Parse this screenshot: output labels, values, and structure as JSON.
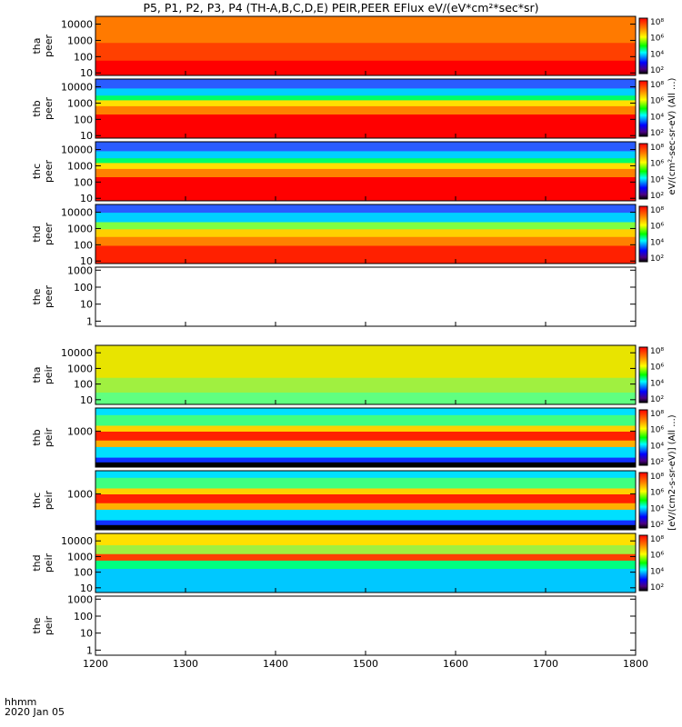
{
  "chart_data": {
    "type": "heatmap",
    "title": "P5, P1, P2, P3, P4 (TH-A,B,C,D,E) PEIR,PEER EFlux eV/(eV*cm²*sec*sr)",
    "x_axis": {
      "range": [
        1200,
        1800
      ],
      "ticks": [
        1200,
        1300,
        1400,
        1500,
        1600,
        1700,
        1800
      ],
      "tick_labels": [
        "1200",
        "1300",
        "1400",
        "1500",
        "1600",
        "1700",
        "1800"
      ],
      "label_line1": "hhmm",
      "label_line2": "2020 Jan 05"
    },
    "colorbar_ticks": [
      "10²",
      "10⁴",
      "10⁶",
      "10⁸"
    ],
    "colorbar_label_electron": "eV/(cm²-sec-sr-eV) (All ...)",
    "colorbar_label_ion": "[eV/(cm2-s-sr-eV)] (All ...)",
    "panels": [
      {
        "id": "tha-peer",
        "probe": "tha",
        "species": "peer",
        "ylabel1": "tha",
        "ylabel2": "peer",
        "yticks": [
          "10",
          "100",
          "1000",
          "10000"
        ],
        "yrange": [
          7,
          30000
        ],
        "empty": false,
        "colorbar": true
      },
      {
        "id": "thb-peer",
        "probe": "thb",
        "species": "peer",
        "ylabel1": "thb",
        "ylabel2": "peer",
        "yticks": [
          "10",
          "100",
          "1000",
          "10000"
        ],
        "yrange": [
          7,
          30000
        ],
        "empty": false,
        "colorbar": true
      },
      {
        "id": "thc-peer",
        "probe": "thc",
        "species": "peer",
        "ylabel1": "thc",
        "ylabel2": "peer",
        "yticks": [
          "10",
          "100",
          "1000",
          "10000"
        ],
        "yrange": [
          7,
          30000
        ],
        "empty": false,
        "colorbar": true
      },
      {
        "id": "thd-peer",
        "probe": "thd",
        "species": "peer",
        "ylabel1": "thd",
        "ylabel2": "peer",
        "yticks": [
          "10",
          "100",
          "1000",
          "10000"
        ],
        "yrange": [
          7,
          30000
        ],
        "empty": false,
        "colorbar": true
      },
      {
        "id": "the-peer",
        "probe": "the",
        "species": "peer",
        "ylabel1": "the",
        "ylabel2": "peer",
        "yticks": [
          "1",
          "10",
          "100",
          "1000"
        ],
        "yrange": [
          0.5,
          1500
        ],
        "empty": true,
        "colorbar": false
      },
      {
        "id": "tha-peir",
        "probe": "tha",
        "species": "peir",
        "ylabel1": "tha",
        "ylabel2": "peir",
        "yticks": [
          "10",
          "100",
          "1000",
          "10000"
        ],
        "yrange": [
          5,
          30000
        ],
        "empty": false,
        "colorbar": true
      },
      {
        "id": "thb-peir",
        "probe": "thb",
        "species": "peir",
        "ylabel1": "thb",
        "ylabel2": "peir",
        "yticks": [
          "1000"
        ],
        "yrange": [
          5,
          30000
        ],
        "empty": false,
        "colorbar": true
      },
      {
        "id": "thc-peir",
        "probe": "thc",
        "species": "peir",
        "ylabel1": "thc",
        "ylabel2": "peir",
        "yticks": [
          "1000"
        ],
        "yrange": [
          5,
          30000
        ],
        "empty": false,
        "colorbar": true
      },
      {
        "id": "thd-peir",
        "probe": "thd",
        "species": "peir",
        "ylabel1": "thd",
        "ylabel2": "peir",
        "yticks": [
          "10",
          "100",
          "1000",
          "10000"
        ],
        "yrange": [
          5,
          30000
        ],
        "empty": false,
        "colorbar": true
      },
      {
        "id": "the-peir",
        "probe": "the",
        "species": "peir",
        "ylabel1": "the",
        "ylabel2": "peir",
        "yticks": [
          "1",
          "10",
          "100",
          "1000"
        ],
        "yrange": [
          0.5,
          1500
        ],
        "empty": true,
        "colorbar": false
      }
    ]
  }
}
